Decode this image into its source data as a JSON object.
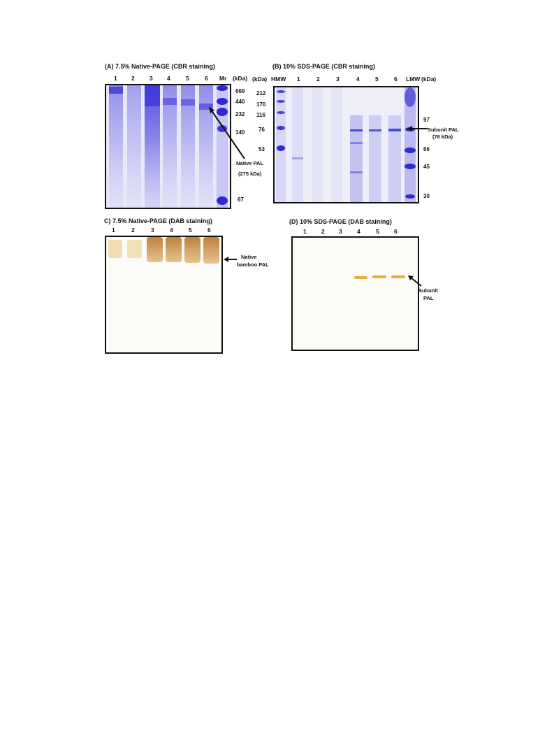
{
  "panels": {
    "a": {
      "title": "(A) 7.5% Native-PAGE (CBR staining)",
      "lanes": [
        "1",
        "2",
        "3",
        "4",
        "5",
        "6",
        "Mr"
      ],
      "unit": "(kDa)",
      "markers": [
        "669",
        "440",
        "232",
        "140",
        "67"
      ],
      "annotation_line1": "Native PAL",
      "annotation_line2": "(275 kDa)",
      "stain_color": "#3c35d8"
    },
    "b": {
      "title": "(B) 10% SDS-PAGE (CBR staining)",
      "unit_left": "(kDa)",
      "lanes": [
        "HMW",
        "1",
        "2",
        "3",
        "4",
        "5",
        "6",
        "LMW"
      ],
      "unit_right": "(kDa)",
      "markers_left": [
        "212",
        "170",
        "116",
        "76",
        "53"
      ],
      "markers_right": [
        "97",
        "66",
        "45",
        "30"
      ],
      "annotation_line1": "Subunit PAL",
      "annotation_line2": "(76 kDa)",
      "stain_color": "#3a3bd0"
    },
    "c": {
      "title": "C) 7.5% Native-PAGE (DAB staining)",
      "lanes": [
        "1",
        "2",
        "3",
        "4",
        "5",
        "6"
      ],
      "annotation_line1": "Native",
      "annotation_line2": "bamboo PAL",
      "stain_color": "#c98a3a"
    },
    "d": {
      "title": "(D) 10% SDS-PAGE (DAB staining)",
      "lanes": [
        "1",
        "2",
        "3",
        "4",
        "5",
        "6"
      ],
      "annotation_line1": "Subunit",
      "annotation_line2": "PAL",
      "stain_color": "#e2b23a"
    }
  }
}
